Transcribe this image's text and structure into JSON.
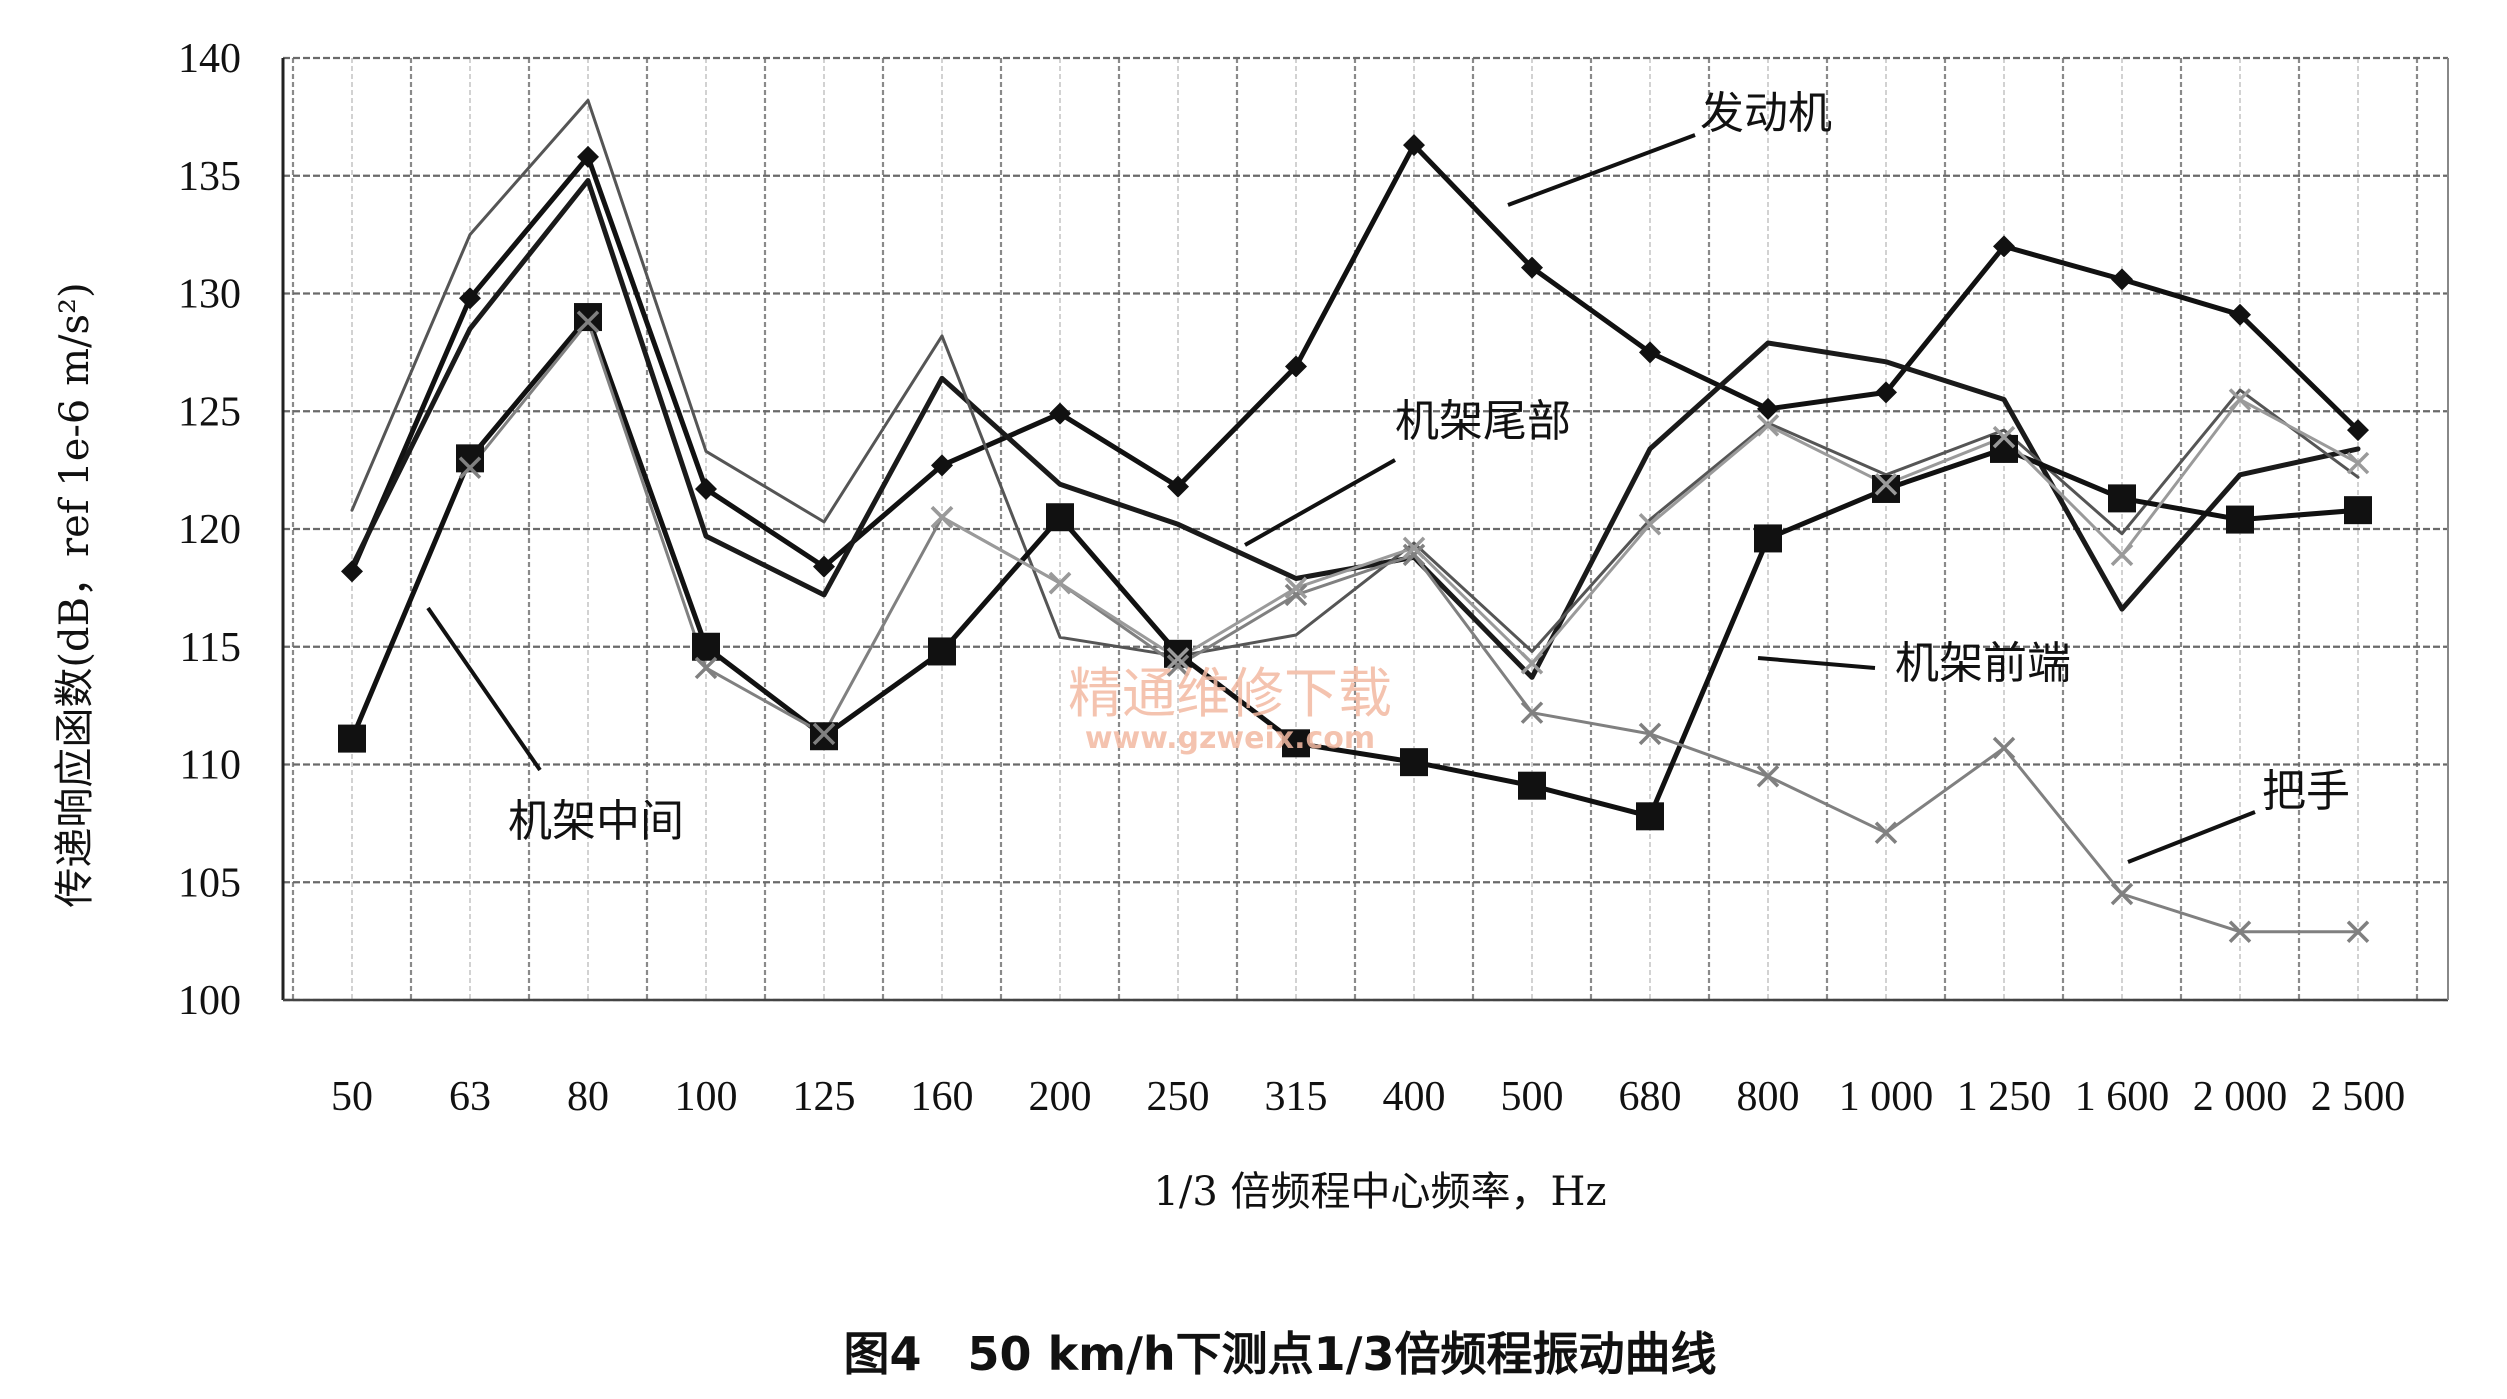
{
  "chart_data": {
    "type": "line",
    "xlabel": "1/3 倍频程中心频率，Hz",
    "ylabel": "传递响应函数(dB，ref 1e-6 m/s²)",
    "ylim": [
      100,
      140
    ],
    "yticks": [
      100,
      105,
      110,
      115,
      120,
      125,
      130,
      135,
      140
    ],
    "grid": true,
    "categories": [
      "50",
      "63",
      "80",
      "100",
      "125",
      "160",
      "200",
      "250",
      "315",
      "400",
      "500",
      "680",
      "800",
      "1 000",
      "1 250",
      "1 600",
      "2 000",
      "2 500"
    ],
    "series": [
      {
        "name": "发动机",
        "marker": "diamond",
        "color": "#111111",
        "stroke_width": 5,
        "values": [
          118.2,
          129.8,
          135.8,
          121.7,
          118.4,
          122.7,
          124.9,
          121.8,
          126.9,
          136.3,
          131.1,
          127.5,
          125.1,
          125.8,
          132.0,
          130.6,
          129.1,
          124.2
        ]
      },
      {
        "name": "机架前端",
        "marker": "none",
        "color": "#1a1a1a",
        "stroke_width": 5,
        "values": [
          118.4,
          128.5,
          134.8,
          119.7,
          117.2,
          126.4,
          121.9,
          120.2,
          117.9,
          118.8,
          113.7,
          123.4,
          127.9,
          127.1,
          125.5,
          116.6,
          122.3,
          123.4
        ]
      },
      {
        "name": "机架尾部",
        "marker": "none",
        "color": "#555555",
        "stroke_width": 3,
        "values": [
          120.8,
          132.5,
          138.2,
          123.3,
          120.3,
          128.2,
          115.4,
          114.6,
          115.5,
          119.4,
          114.8,
          120.4,
          124.5,
          122.3,
          124.2,
          119.8,
          125.9,
          122.2
        ]
      },
      {
        "name": "机架中间",
        "marker": "square",
        "color": "#111111",
        "stroke_width": 5,
        "values": [
          111.1,
          123.0,
          129.0,
          115.0,
          111.2,
          114.8,
          120.5,
          114.7,
          110.9,
          110.1,
          109.1,
          107.8,
          119.6,
          121.7,
          123.4,
          121.3,
          120.4,
          120.8
        ]
      },
      {
        "name": "把手",
        "marker": "x",
        "color": "#808080",
        "stroke_width": 3,
        "values": [
          null,
          122.6,
          128.8,
          114.1,
          111.3,
          120.5,
          117.7,
          114.2,
          117.2,
          118.9,
          112.2,
          111.3,
          109.5,
          107.1,
          110.7,
          104.5,
          102.9,
          102.9
        ]
      },
      {
        "name": "",
        "marker": "x",
        "color": "#9a9a9a",
        "stroke_width": 3,
        "values": [
          null,
          null,
          null,
          null,
          null,
          120.5,
          117.7,
          114.5,
          117.5,
          119.2,
          114.3,
          120.2,
          124.4,
          121.9,
          123.9,
          118.9,
          125.5,
          122.8
        ]
      }
    ],
    "labels": [
      {
        "text": "发动机"
      },
      {
        "text": "机架尾部"
      },
      {
        "text": "机架前端"
      },
      {
        "text": "把手"
      },
      {
        "text": "机架中间"
      }
    ]
  },
  "watermark": {
    "line1": "精通维修下载",
    "line2": "www.gzweix.com"
  },
  "caption": "图4　50 km/h下测点1/3倍频程振动曲线"
}
